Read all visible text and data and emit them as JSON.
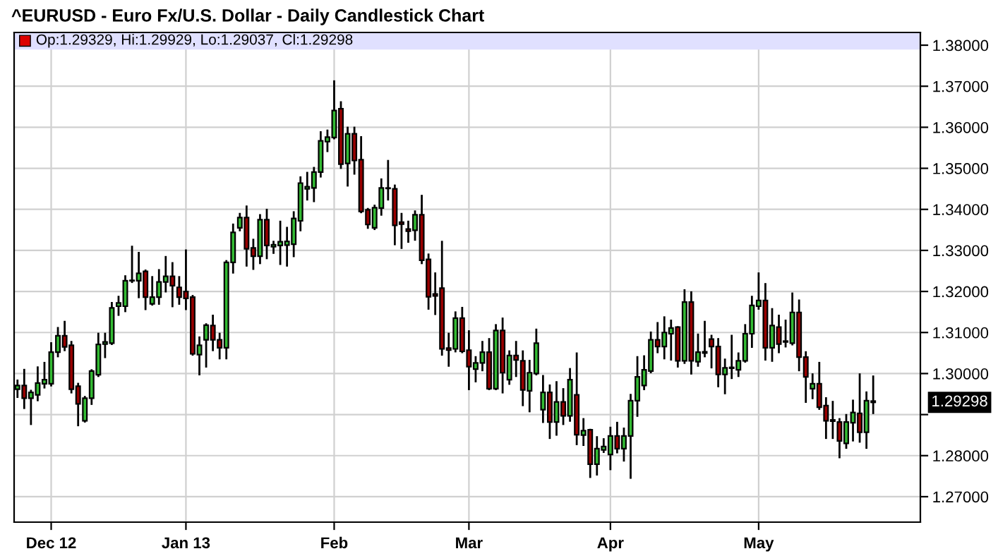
{
  "chart_data": {
    "type": "candlestick",
    "title": "^EURUSD - Euro Fx/U.S. Dollar - Daily Candlestick Chart",
    "categories": [
      null,
      null,
      null,
      null,
      null,
      "Dec 12",
      null,
      null,
      null,
      null,
      null,
      null,
      null,
      null,
      null,
      null,
      null,
      null,
      null,
      null,
      null,
      null,
      null,
      null,
      null,
      "Jan 13",
      null,
      null,
      null,
      null,
      null,
      null,
      null,
      null,
      null,
      null,
      null,
      null,
      null,
      null,
      null,
      null,
      null,
      null,
      null,
      null,
      null,
      "Feb",
      null,
      null,
      null,
      null,
      null,
      null,
      null,
      null,
      null,
      null,
      null,
      null,
      null,
      null,
      null,
      null,
      null,
      null,
      null,
      "Mar",
      null,
      null,
      null,
      null,
      null,
      null,
      null,
      null,
      null,
      null,
      null,
      null,
      null,
      null,
      null,
      null,
      null,
      null,
      null,
      null,
      "Apr",
      null,
      null,
      null,
      null,
      null,
      null,
      null,
      null,
      null,
      null,
      null,
      null,
      null,
      null,
      null,
      null,
      null,
      null,
      null,
      null,
      null,
      "May",
      null,
      null,
      null,
      null,
      null,
      null,
      null,
      null,
      null,
      null,
      null,
      null,
      null,
      null,
      null,
      null,
      null
    ],
    "ohlc": [
      [
        1.2962,
        1.2983,
        1.2943,
        1.2971
      ],
      [
        1.2971,
        1.3009,
        1.2916,
        1.294
      ],
      [
        1.294,
        1.2958,
        1.2877,
        1.2954
      ],
      [
        1.2948,
        1.3015,
        1.2935,
        1.2977
      ],
      [
        1.2975,
        1.3026,
        1.2966,
        1.2985
      ],
      [
        1.2975,
        1.3074,
        1.2971,
        1.3052
      ],
      [
        1.3052,
        1.3111,
        1.3042,
        1.3092
      ],
      [
        1.3092,
        1.3126,
        1.3057,
        1.3065
      ],
      [
        1.3069,
        1.3077,
        1.2954,
        1.2962
      ],
      [
        1.2969,
        1.2975,
        1.2874,
        1.2926
      ],
      [
        1.2885,
        1.2943,
        1.2883,
        1.294
      ],
      [
        1.294,
        1.3008,
        1.2926,
        1.3006
      ],
      [
        1.2997,
        1.3097,
        1.2994,
        1.3071
      ],
      [
        1.3072,
        1.3097,
        1.304,
        1.3077
      ],
      [
        1.3074,
        1.3172,
        1.3072,
        1.316
      ],
      [
        1.3164,
        1.3187,
        1.3143,
        1.3172
      ],
      [
        1.3164,
        1.3237,
        1.3152,
        1.3226
      ],
      [
        1.3226,
        1.3309,
        1.3223,
        1.3227
      ],
      [
        1.3226,
        1.3294,
        1.3186,
        1.3244
      ],
      [
        1.3249,
        1.3251,
        1.3157,
        1.3186
      ],
      [
        1.317,
        1.3235,
        1.3168,
        1.3186
      ],
      [
        1.3186,
        1.3252,
        1.317,
        1.3223
      ],
      [
        1.3223,
        1.3284,
        1.32,
        1.3237
      ],
      [
        1.3237,
        1.3269,
        1.3164,
        1.3214
      ],
      [
        1.321,
        1.3235,
        1.317,
        1.3186
      ],
      [
        1.32,
        1.33,
        1.3157,
        1.3183
      ],
      [
        1.3186,
        1.3189,
        1.3046,
        1.3048
      ],
      [
        1.3046,
        1.3088,
        1.2998,
        1.3069
      ],
      [
        1.3082,
        1.312,
        1.3017,
        1.3118
      ],
      [
        1.3117,
        1.3141,
        1.3057,
        1.3082
      ],
      [
        1.3082,
        1.3097,
        1.3037,
        1.3063
      ],
      [
        1.3063,
        1.3274,
        1.3037,
        1.3271
      ],
      [
        1.3271,
        1.3363,
        1.3246,
        1.3344
      ],
      [
        1.3355,
        1.3389,
        1.3349,
        1.338
      ],
      [
        1.338,
        1.3407,
        1.3263,
        1.3304
      ],
      [
        1.3306,
        1.3326,
        1.3255,
        1.3286
      ],
      [
        1.3286,
        1.3386,
        1.3269,
        1.3375
      ],
      [
        1.3375,
        1.3399,
        1.3281,
        1.3312
      ],
      [
        1.3309,
        1.3321,
        1.3294,
        1.3314
      ],
      [
        1.3312,
        1.337,
        1.3267,
        1.3321
      ],
      [
        1.3313,
        1.3355,
        1.3263,
        1.3322
      ],
      [
        1.3315,
        1.3393,
        1.3286,
        1.3378
      ],
      [
        1.3372,
        1.3478,
        1.3349,
        1.3464
      ],
      [
        1.345,
        1.3489,
        1.3424,
        1.3455
      ],
      [
        1.3452,
        1.3501,
        1.342,
        1.3491
      ],
      [
        1.3491,
        1.3588,
        1.348,
        1.3567
      ],
      [
        1.3565,
        1.3592,
        1.3542,
        1.3576
      ],
      [
        1.3575,
        1.3712,
        1.3573,
        1.3641
      ],
      [
        1.3645,
        1.3661,
        1.3501,
        1.351
      ],
      [
        1.3512,
        1.3599,
        1.3458,
        1.3584
      ],
      [
        1.3584,
        1.3599,
        1.3487,
        1.3519
      ],
      [
        1.3521,
        1.3576,
        1.3393,
        1.3395
      ],
      [
        1.3399,
        1.3401,
        1.3355,
        1.3363
      ],
      [
        1.3355,
        1.3409,
        1.3352,
        1.3404
      ],
      [
        1.3403,
        1.3473,
        1.3387,
        1.3452
      ],
      [
        1.3451,
        1.3518,
        1.3424,
        1.3452
      ],
      [
        1.345,
        1.3458,
        1.3315,
        1.3361
      ],
      [
        1.3369,
        1.3389,
        1.3306,
        1.3364
      ],
      [
        1.3352,
        1.337,
        1.3321,
        1.3347
      ],
      [
        1.3349,
        1.3395,
        1.3326,
        1.3387
      ],
      [
        1.3387,
        1.3433,
        1.3269,
        1.3276
      ],
      [
        1.3278,
        1.329,
        1.3158,
        1.3187
      ],
      [
        1.3194,
        1.3244,
        1.3145,
        1.3189
      ],
      [
        1.3208,
        1.3321,
        1.3046,
        1.306
      ],
      [
        1.3062,
        1.3097,
        1.3019,
        1.3057
      ],
      [
        1.306,
        1.3149,
        1.3054,
        1.3135
      ],
      [
        1.3135,
        1.316,
        1.3052,
        1.3054
      ],
      [
        1.3057,
        1.3103,
        1.2962,
        1.3017
      ],
      [
        1.3011,
        1.304,
        1.2981,
        1.3026
      ],
      [
        1.3026,
        1.3077,
        1.3008,
        1.3052
      ],
      [
        1.3052,
        1.3084,
        1.2962,
        1.2963
      ],
      [
        1.2963,
        1.3118,
        1.2962,
        1.3105
      ],
      [
        1.3105,
        1.3134,
        1.2954,
        1.3002
      ],
      [
        1.2985,
        1.3054,
        1.2975,
        1.3044
      ],
      [
        1.3044,
        1.3077,
        1.2994,
        1.3033
      ],
      [
        1.3031,
        1.3054,
        1.2923,
        1.296
      ],
      [
        1.2958,
        1.3031,
        1.2908,
        1.3002
      ],
      [
        1.3,
        1.3107,
        1.2998,
        1.3074
      ],
      [
        1.2912,
        1.2994,
        1.2882,
        1.2954
      ],
      [
        1.2954,
        1.2971,
        1.2843,
        1.2882
      ],
      [
        1.2882,
        1.2979,
        1.2851,
        1.2931
      ],
      [
        1.2931,
        1.2962,
        1.2877,
        1.2897
      ],
      [
        1.2897,
        1.3011,
        1.2885,
        1.2985
      ],
      [
        1.2948,
        1.3049,
        1.2828,
        1.2851
      ],
      [
        1.285,
        1.2889,
        1.2826,
        1.2861
      ],
      [
        1.2863,
        1.2863,
        1.2748,
        1.2779
      ],
      [
        1.2779,
        1.2845,
        1.2754,
        1.2817
      ],
      [
        1.2814,
        1.284,
        1.2809,
        1.2822
      ],
      [
        1.2803,
        1.2868,
        1.2767,
        1.2848
      ],
      [
        1.2848,
        1.288,
        1.2808,
        1.2817
      ],
      [
        1.2817,
        1.2866,
        1.2788,
        1.2848
      ],
      [
        1.2848,
        1.2948,
        1.2746,
        1.2934
      ],
      [
        1.2934,
        1.304,
        1.2897,
        1.2992
      ],
      [
        1.2971,
        1.3042,
        1.2962,
        1.3009
      ],
      [
        1.3006,
        1.31,
        1.3003,
        1.3082
      ],
      [
        1.3082,
        1.3123,
        1.3052,
        1.3066
      ],
      [
        1.3066,
        1.3137,
        1.3037,
        1.31
      ],
      [
        1.3097,
        1.3129,
        1.3034,
        1.3111
      ],
      [
        1.3113,
        1.3113,
        1.3017,
        1.3031
      ],
      [
        1.3031,
        1.3203,
        1.3026,
        1.3174
      ],
      [
        1.3174,
        1.3198,
        1.3,
        1.3031
      ],
      [
        1.3029,
        1.3095,
        1.3019,
        1.3052
      ],
      [
        1.305,
        1.3126,
        1.3042,
        1.3053
      ],
      [
        1.3084,
        1.3092,
        1.3015,
        1.3066
      ],
      [
        1.3066,
        1.3084,
        1.2969,
        1.2998
      ],
      [
        1.2998,
        1.3034,
        1.2952,
        1.3014
      ],
      [
        1.3013,
        1.3092,
        1.2989,
        1.3015
      ],
      [
        1.3009,
        1.3049,
        1.2994,
        1.3031
      ],
      [
        1.3031,
        1.3118,
        1.3029,
        1.3097
      ],
      [
        1.3097,
        1.3187,
        1.3065,
        1.3166
      ],
      [
        1.3164,
        1.3244,
        1.3158,
        1.3178
      ],
      [
        1.3178,
        1.3218,
        1.3034,
        1.3063
      ],
      [
        1.3063,
        1.3157,
        1.3031,
        1.3117
      ],
      [
        1.3113,
        1.3141,
        1.3052,
        1.3072
      ],
      [
        1.3079,
        1.3129,
        1.3066,
        1.3077
      ],
      [
        1.3074,
        1.3195,
        1.3071,
        1.3149
      ],
      [
        1.3149,
        1.3178,
        1.3008,
        1.304
      ],
      [
        1.304,
        1.3052,
        1.2931,
        1.2992
      ],
      [
        1.2963,
        1.2998,
        1.294,
        1.2975
      ],
      [
        1.2975,
        1.3026,
        1.2914,
        1.2918
      ],
      [
        1.2922,
        1.294,
        1.2843,
        1.2885
      ],
      [
        1.2887,
        1.2931,
        1.2843,
        1.2884
      ],
      [
        1.2882,
        1.2889,
        1.2796,
        1.2836
      ],
      [
        1.283,
        1.2899,
        1.2819,
        1.2882
      ],
      [
        1.288,
        1.2934,
        1.2837,
        1.2905
      ],
      [
        1.2903,
        1.2998,
        1.2834,
        1.2857
      ],
      [
        1.2857,
        1.2954,
        1.2819,
        1.2934
      ],
      [
        1.29329,
        1.29929,
        1.29037,
        1.29298
      ]
    ],
    "colors": [
      "#33bb33",
      "#990000",
      "#33bb33",
      "#33bb33",
      "#33bb33",
      "#33bb33",
      "#33bb33",
      "#990000",
      "#990000",
      "#990000",
      "#33bb33",
      "#33bb33",
      "#33bb33",
      "#33bb33",
      "#33bb33",
      "#33bb33",
      "#33bb33",
      "#33bb33",
      "#33bb33",
      "#990000",
      "#33bb33",
      "#33bb33",
      "#33bb33",
      "#990000",
      "#990000",
      "#990000",
      "#990000",
      "#33bb33",
      "#33bb33",
      "#990000",
      "#990000",
      "#33bb33",
      "#33bb33",
      "#33bb33",
      "#990000",
      "#990000",
      "#33bb33",
      "#990000",
      "#33bb33",
      "#33bb33",
      "#33bb33",
      "#33bb33",
      "#33bb33",
      "#33bb33",
      "#33bb33",
      "#33bb33",
      "#33bb33",
      "#33bb33",
      "#990000",
      "#33bb33",
      "#990000",
      "#990000",
      "#990000",
      "#33bb33",
      "#33bb33",
      "#33bb33",
      "#990000",
      "#990000",
      "#990000",
      "#33bb33",
      "#990000",
      "#990000",
      "#990000",
      "#990000",
      "#990000",
      "#33bb33",
      "#990000",
      "#990000",
      "#33bb33",
      "#33bb33",
      "#990000",
      "#33bb33",
      "#990000",
      "#33bb33",
      "#990000",
      "#990000",
      "#33bb33",
      "#33bb33",
      "#33bb33",
      "#990000",
      "#33bb33",
      "#990000",
      "#33bb33",
      "#990000",
      "#33bb33",
      "#990000",
      "#33bb33",
      "#33bb33",
      "#33bb33",
      "#990000",
      "#33bb33",
      "#33bb33",
      "#33bb33",
      "#33bb33",
      "#33bb33",
      "#990000",
      "#33bb33",
      "#33bb33",
      "#990000",
      "#33bb33",
      "#990000",
      "#33bb33",
      "#33bb33",
      "#990000",
      "#990000",
      "#33bb33",
      "#33bb33",
      "#33bb33",
      "#33bb33",
      "#33bb33",
      "#33bb33",
      "#990000",
      "#33bb33",
      "#990000",
      "#990000",
      "#33bb33",
      "#990000",
      "#990000",
      "#33bb33",
      "#990000",
      "#990000",
      "#990000",
      "#990000",
      "#33bb33",
      "#33bb33",
      "#990000",
      "#33bb33",
      "#990000"
    ],
    "ylim": [
      1.2638,
      1.3831
    ],
    "yticks": [
      {
        "value": 1.27,
        "label": "1.27000"
      },
      {
        "value": 1.28,
        "label": "1.28000"
      },
      {
        "value": 1.29,
        "label": null
      },
      {
        "value": 1.3,
        "label": "1.30000"
      },
      {
        "value": 1.31,
        "label": "1.31000"
      },
      {
        "value": 1.32,
        "label": "1.32000"
      },
      {
        "value": 1.33,
        "label": "1.33000"
      },
      {
        "value": 1.34,
        "label": "1.34000"
      },
      {
        "value": 1.35,
        "label": "1.35000"
      },
      {
        "value": 1.36,
        "label": "1.36000"
      },
      {
        "value": 1.37,
        "label": "1.37000"
      },
      {
        "value": 1.38,
        "label": "1.38000"
      }
    ],
    "grid": true,
    "annotations": [
      "Op:1.29329, Hi:1.29929, Lo:1.29037, Cl:1.29298",
      "1.29298"
    ]
  }
}
